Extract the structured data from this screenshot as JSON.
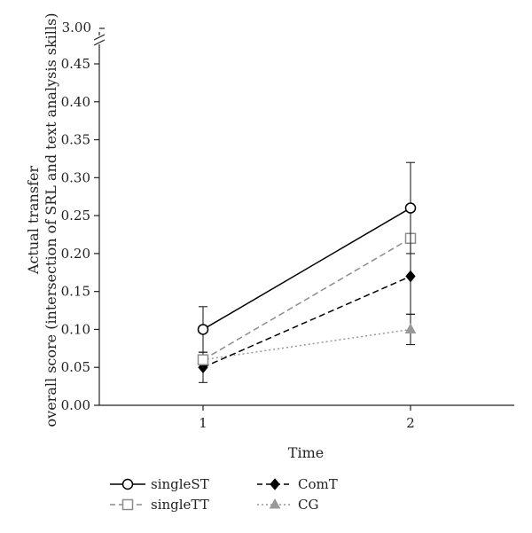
{
  "chart_data": {
    "type": "line",
    "title": "",
    "xlabel": "Time",
    "ylabel_line1": "Actual transfer",
    "ylabel_line2": "overall score (intersection of SRL and text analysis skills)",
    "x": [
      1,
      2
    ],
    "x_tick_labels": [
      "1",
      "2"
    ],
    "xlim": [
      0.5,
      2.5
    ],
    "ylim": [
      0,
      0.45
    ],
    "y_ticks": [
      0,
      0.05,
      0.1,
      0.15,
      0.2,
      0.25,
      0.3,
      0.35,
      0.4,
      0.45
    ],
    "y_tick_labels": [
      "0.00",
      "0.05",
      "0.10",
      "0.15",
      "0.20",
      "0.25",
      "0.30",
      "0.35",
      "0.40",
      "0.45"
    ],
    "y_axis_break": true,
    "y_break_label": "3.00",
    "grid": false,
    "legend_position": "bottom",
    "series": [
      {
        "name": "singleST",
        "values": [
          0.1,
          0.26
        ],
        "error_low": [
          0.07,
          0.2
        ],
        "error_high": [
          0.13,
          0.32
        ],
        "color": "#000000",
        "line": "solid",
        "marker": "circle-open"
      },
      {
        "name": "singleTT",
        "values": [
          0.06,
          0.22
        ],
        "error_low": null,
        "error_high": null,
        "color": "#8c8c8c",
        "line": "dashed",
        "marker": "square-open"
      },
      {
        "name": "ComT",
        "values": [
          0.05,
          0.17
        ],
        "error_low": [
          0.03,
          0.12
        ],
        "error_high": [
          0.07,
          0.22
        ],
        "color": "#000000",
        "line": "dashed",
        "marker": "diamond-filled"
      },
      {
        "name": "CG",
        "values": [
          0.06,
          0.1
        ],
        "error_low": [
          0.05,
          0.08
        ],
        "error_high": [
          0.07,
          0.12
        ],
        "color": "#999999",
        "line": "dotted",
        "marker": "triangle-filled"
      }
    ]
  }
}
